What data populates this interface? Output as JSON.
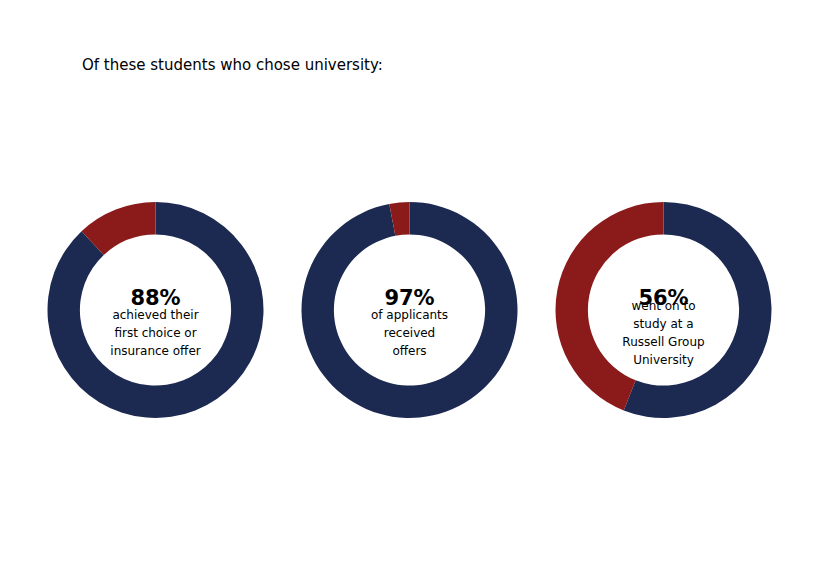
{
  "chart_data": [
    {
      "type": "pie",
      "title": "Of these students who chose university:",
      "values": [
        88,
        12
      ],
      "colors": [
        "#1c2951",
        "#8b1a1a"
      ],
      "annotations": [
        "88%",
        "achieved their\nfirst choice or\ninsurance offer"
      ]
    },
    {
      "type": "pie",
      "values": [
        97,
        3
      ],
      "colors": [
        "#1c2951",
        "#8b1a1a"
      ],
      "annotations": [
        "97%",
        "of applicants\nreceived\noffers"
      ]
    },
    {
      "type": "pie",
      "values": [
        56,
        44
      ],
      "colors": [
        "#1c2951",
        "#8b1a1a"
      ],
      "annotations": [
        "56%",
        "went on to\nstudy at a\nRussell Group\nUniversity"
      ]
    }
  ]
}
